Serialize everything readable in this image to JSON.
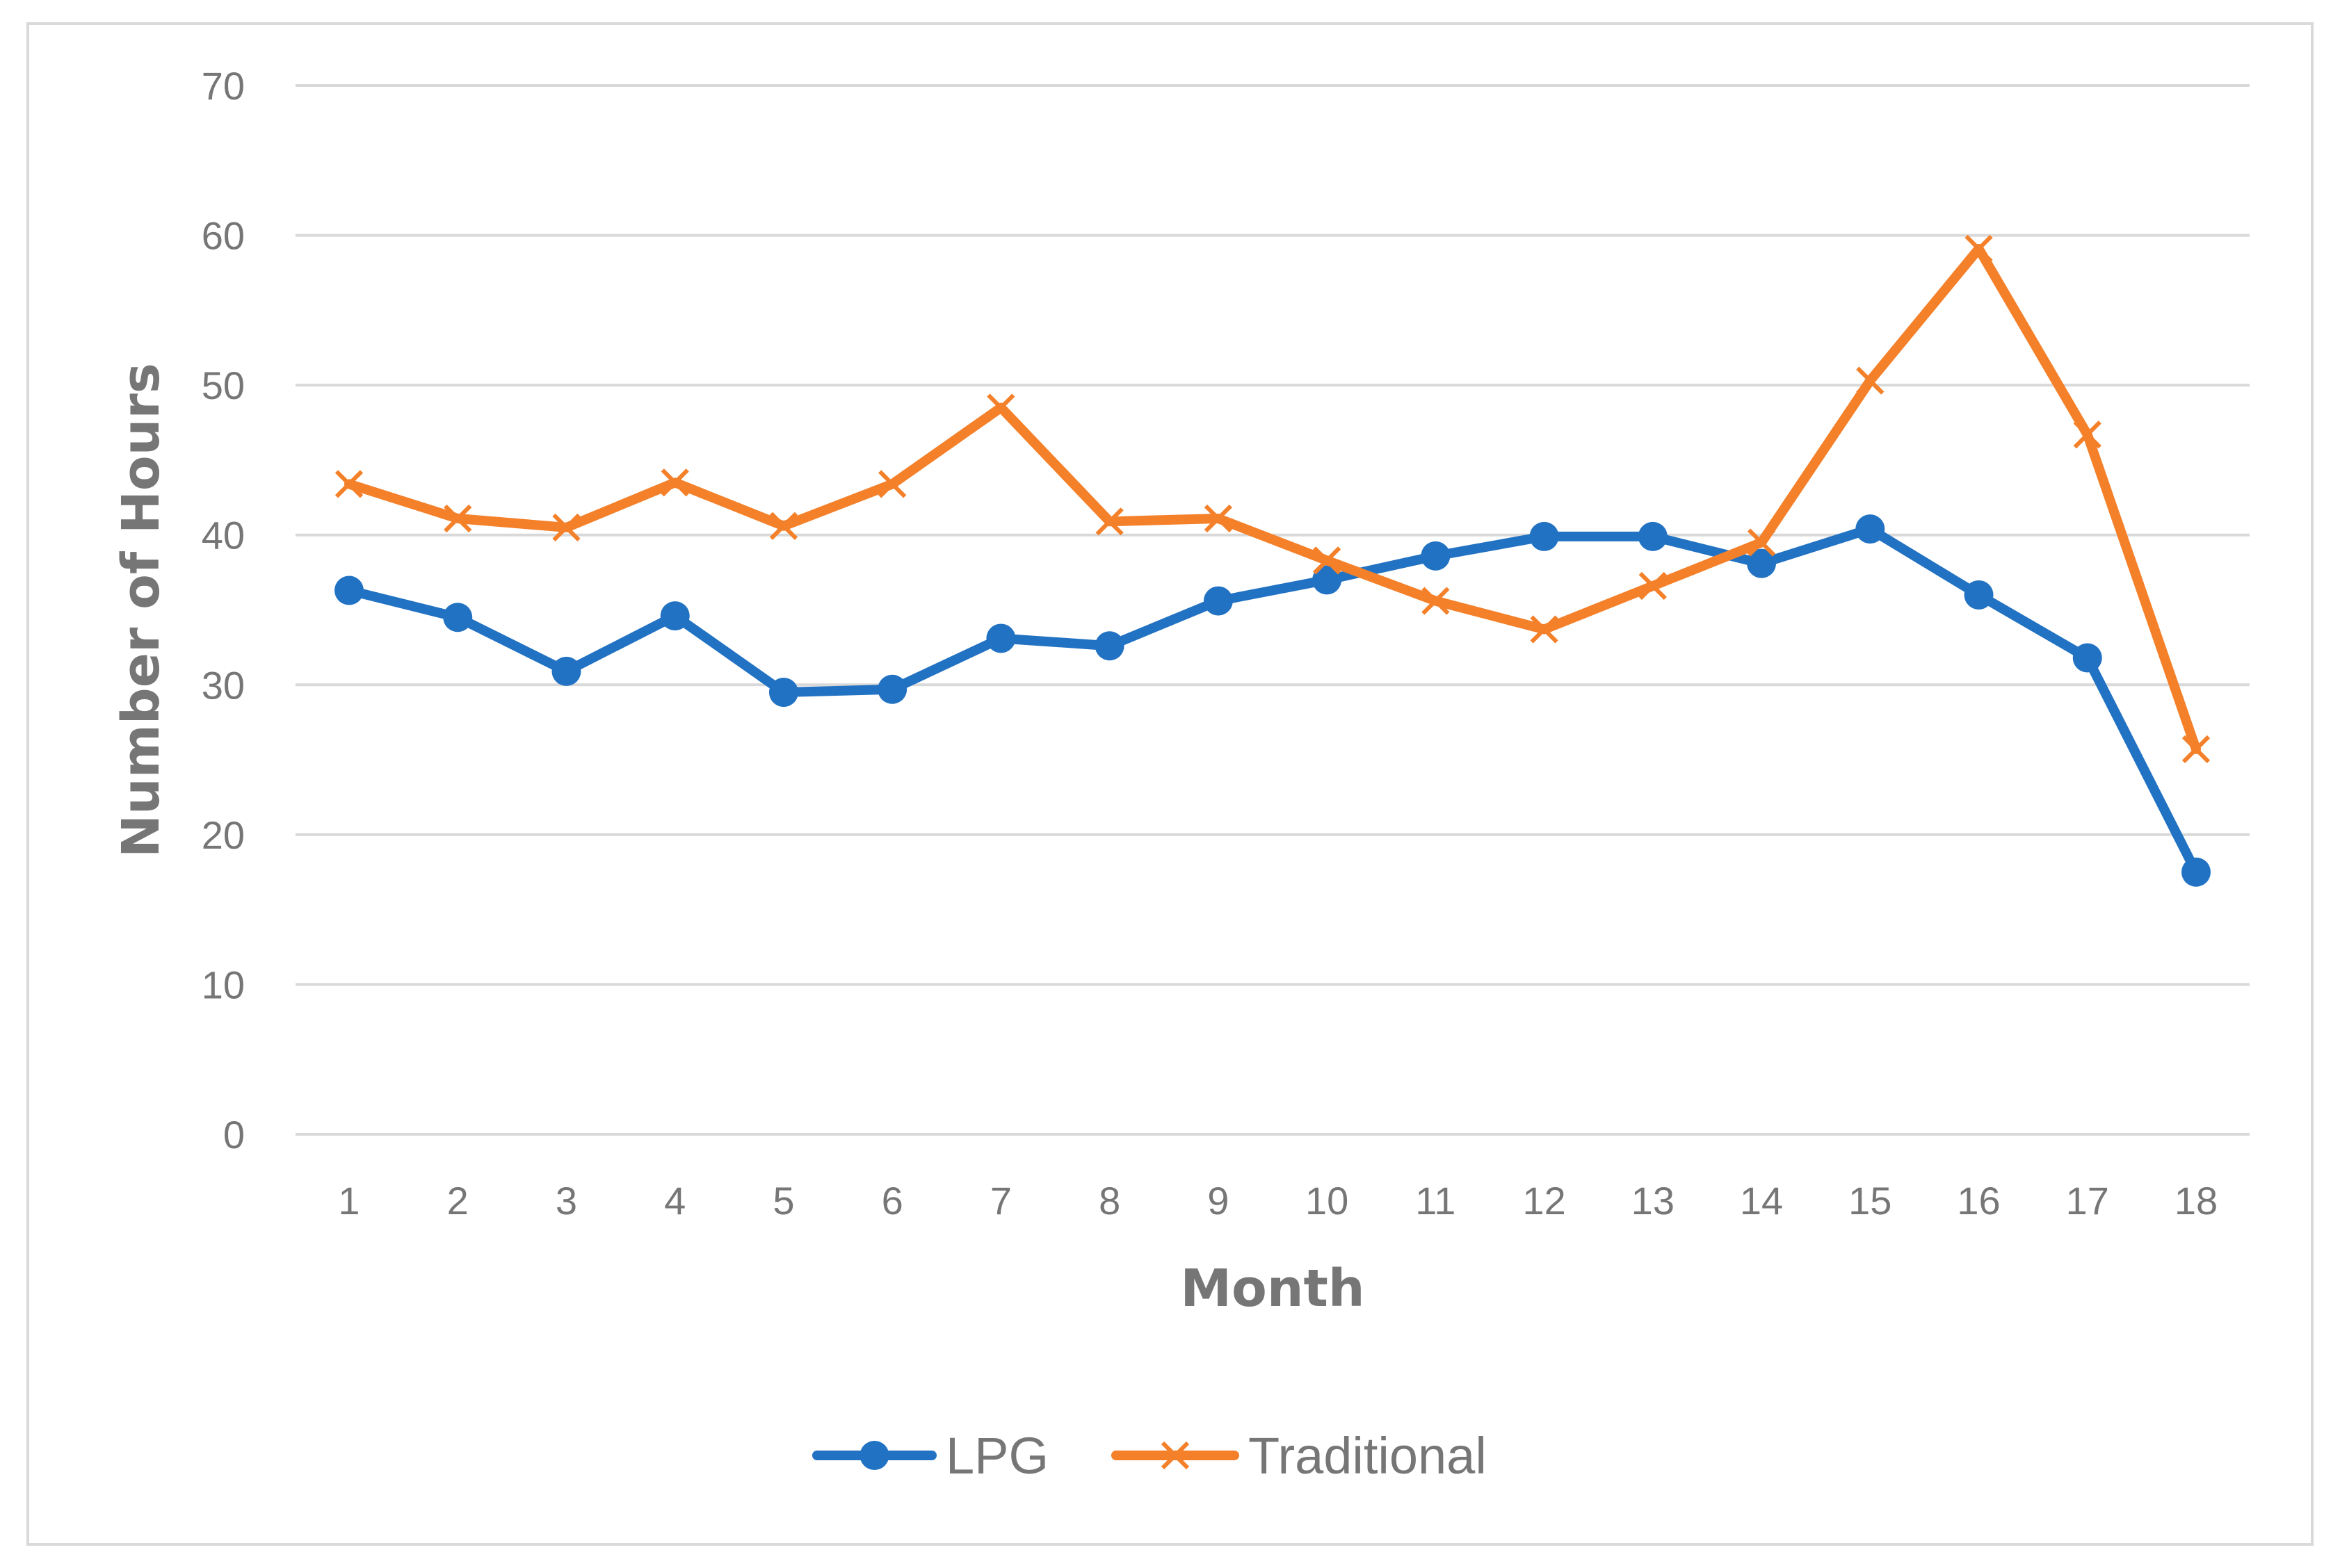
{
  "chart_data": {
    "type": "line",
    "title": "",
    "xlabel": "Month",
    "ylabel": "Number of Hours",
    "categories": [
      "1",
      "2",
      "3",
      "4",
      "5",
      "6",
      "7",
      "8",
      "9",
      "10",
      "11",
      "12",
      "13",
      "14",
      "15",
      "16",
      "17",
      "18"
    ],
    "ylim": [
      0,
      70
    ],
    "yticks": [
      "0",
      "10",
      "20",
      "30",
      "40",
      "50",
      "60",
      "70"
    ],
    "grid": "horizontal",
    "legend_position": "bottom",
    "series": [
      {
        "name": "LPG",
        "color": "#2272C3",
        "marker": "circle",
        "values": [
          36.3,
          34.5,
          30.9,
          34.6,
          29.5,
          29.7,
          33.1,
          32.6,
          35.6,
          37.0,
          38.6,
          39.9,
          39.9,
          38.1,
          40.4,
          36.0,
          31.8,
          17.5
        ]
      },
      {
        "name": "Traditional",
        "color": "#F4802A",
        "marker": "x",
        "values": [
          43.4,
          41.1,
          40.5,
          43.5,
          40.6,
          43.4,
          48.5,
          40.9,
          41.1,
          38.3,
          35.6,
          33.7,
          36.6,
          39.5,
          50.3,
          59.1,
          46.7,
          25.7
        ]
      }
    ]
  }
}
